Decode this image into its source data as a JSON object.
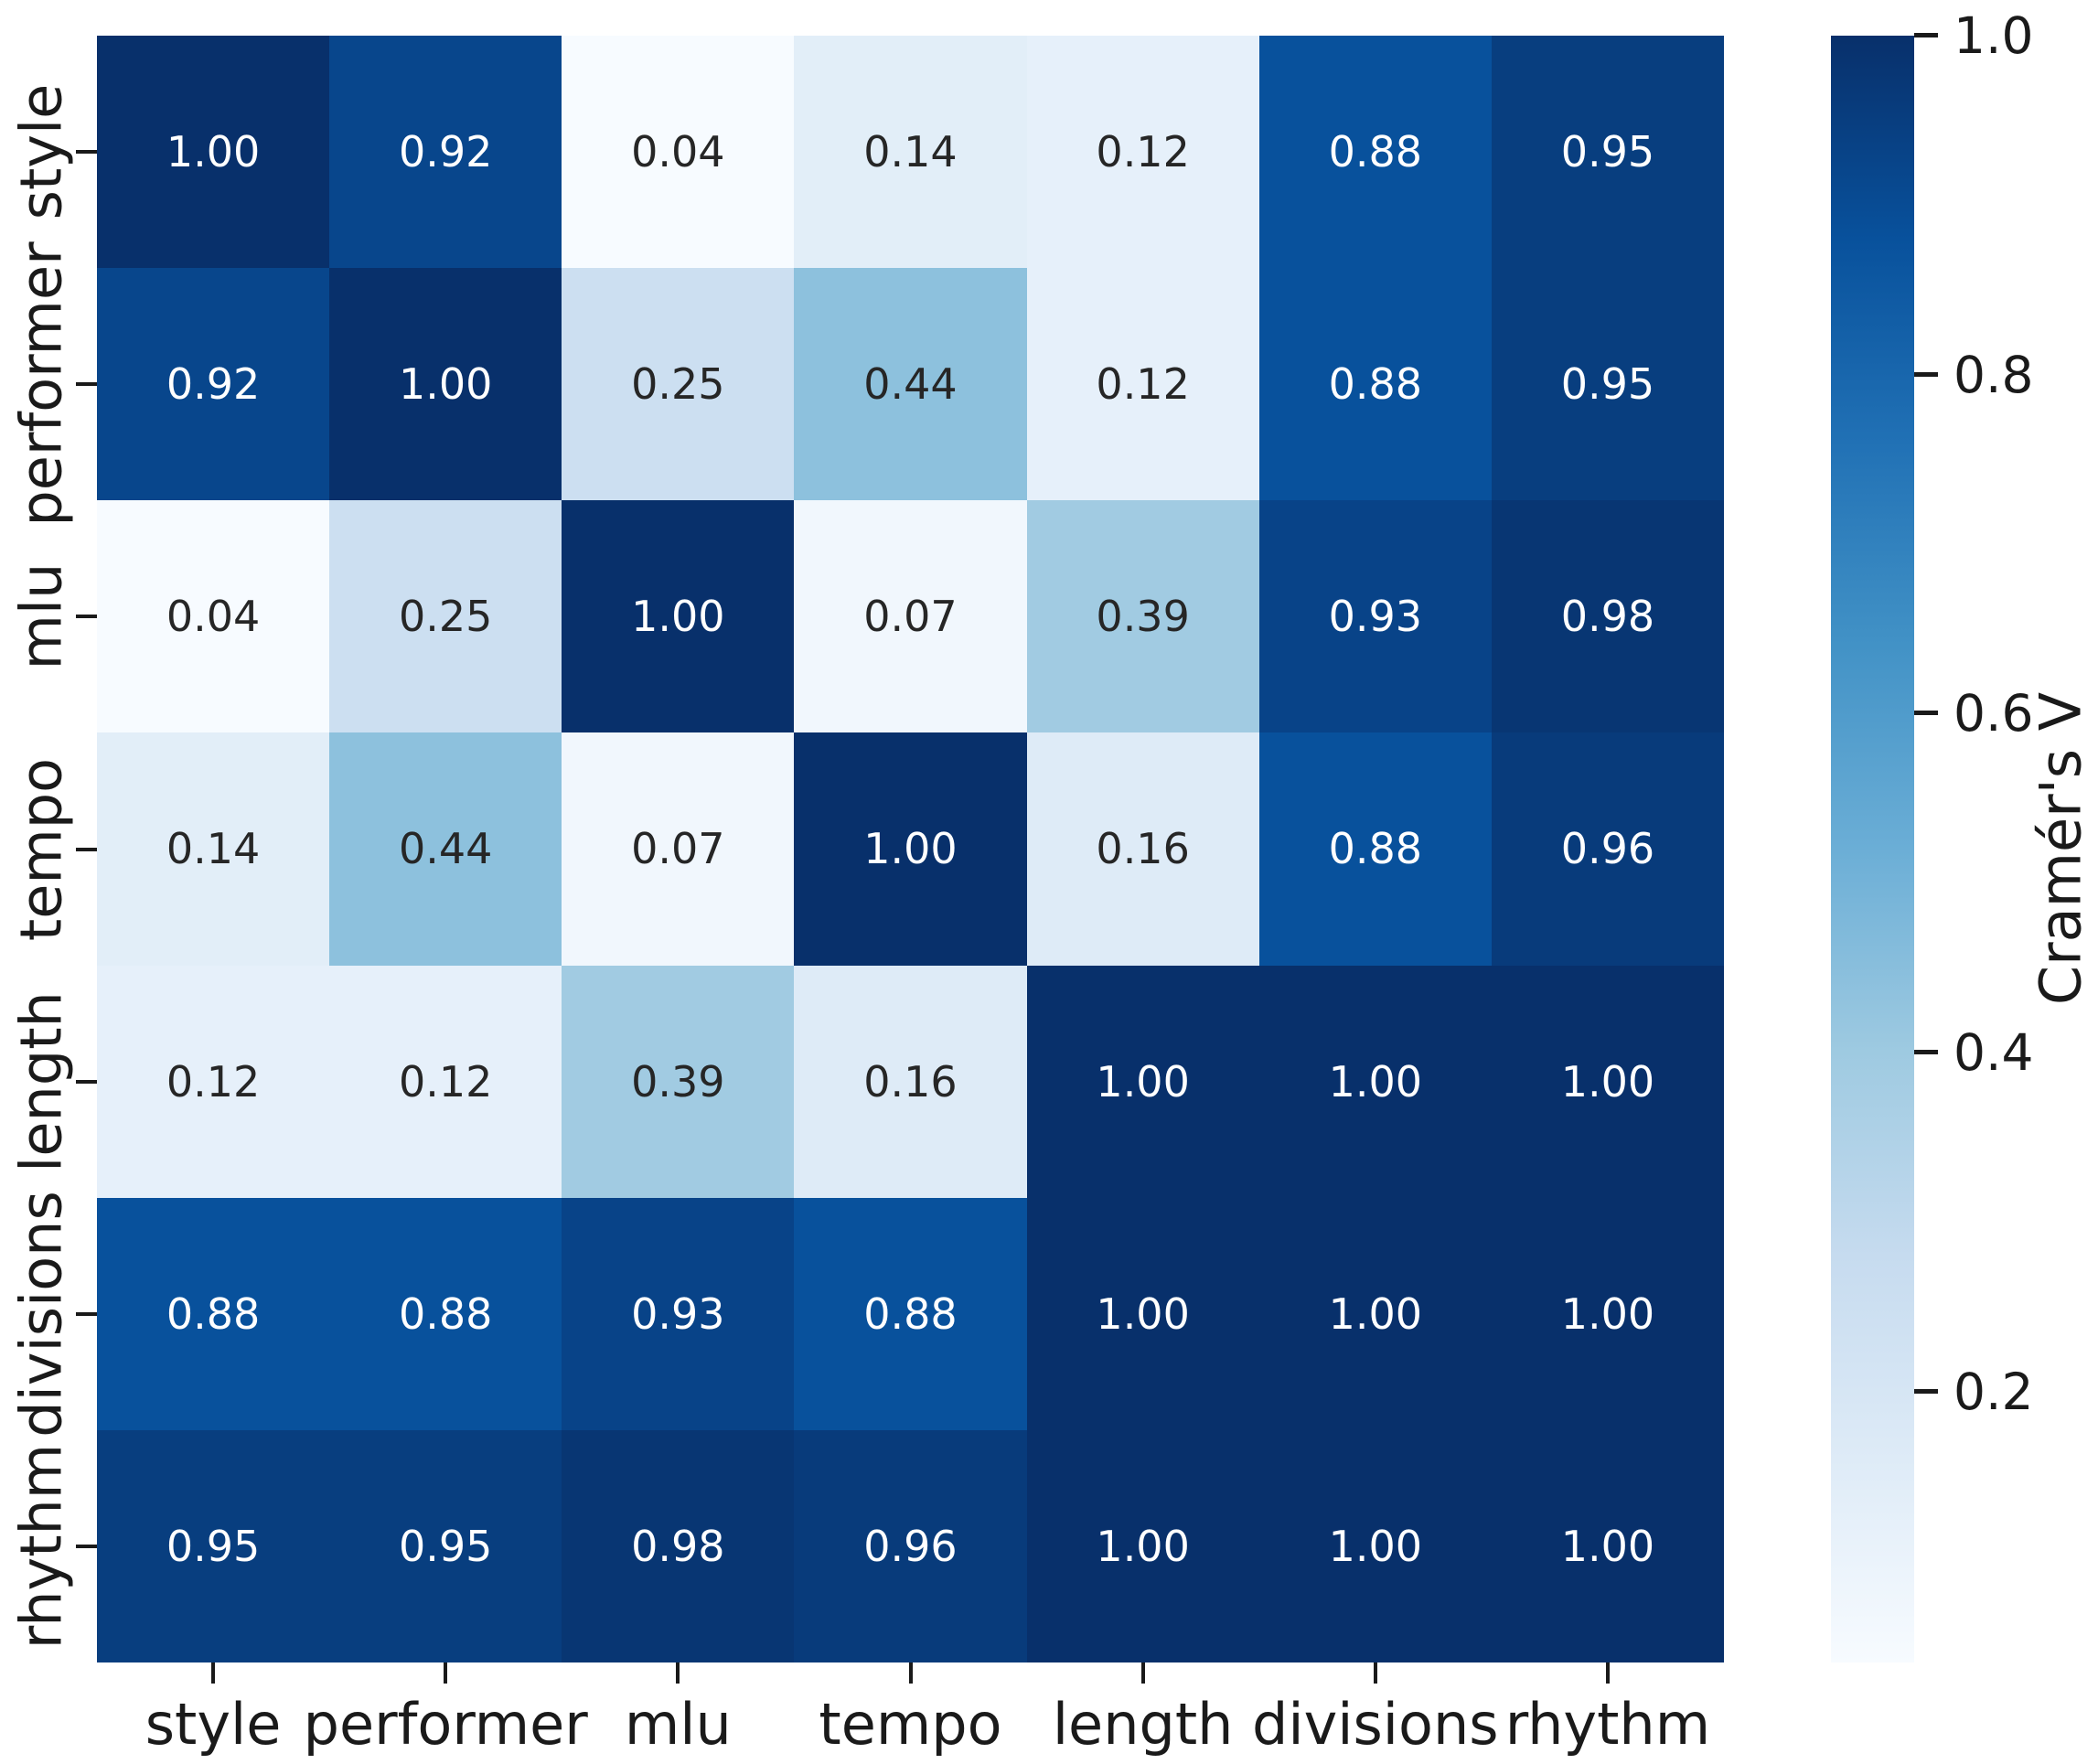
{
  "chart_data": {
    "type": "heatmap",
    "title": "",
    "categories": [
      "style",
      "performer",
      "mlu",
      "tempo",
      "length",
      "divisions",
      "rhythm"
    ],
    "matrix": [
      [
        1.0,
        0.92,
        0.04,
        0.14,
        0.12,
        0.88,
        0.95
      ],
      [
        0.92,
        1.0,
        0.25,
        0.44,
        0.12,
        0.88,
        0.95
      ],
      [
        0.04,
        0.25,
        1.0,
        0.07,
        0.39,
        0.93,
        0.98
      ],
      [
        0.14,
        0.44,
        0.07,
        1.0,
        0.16,
        0.88,
        0.96
      ],
      [
        0.12,
        0.12,
        0.39,
        0.16,
        1.0,
        1.0,
        1.0
      ],
      [
        0.88,
        0.88,
        0.93,
        0.88,
        1.0,
        1.0,
        1.0
      ],
      [
        0.95,
        0.95,
        0.98,
        0.96,
        1.0,
        1.0,
        1.0
      ]
    ],
    "value_format": ".2f",
    "grid": false,
    "colorbar": {
      "label": "Cramér's V",
      "position": "right",
      "tick_labels": [
        "1.0",
        "0.8",
        "0.6",
        "0.4",
        "0.2"
      ],
      "tick_values": [
        1.0,
        0.8,
        0.6,
        0.4,
        0.2
      ],
      "vmin": 0.04,
      "vmax": 1.0,
      "colormap": "Blues"
    },
    "colors": {
      "colormap_stops": [
        "#f7fbff",
        "#deebf7",
        "#c6dbef",
        "#9ecae1",
        "#6baed6",
        "#4292c6",
        "#2171b5",
        "#08519c",
        "#08306b"
      ],
      "annotation_on_dark": "#ffffff",
      "annotation_on_light": "#262626",
      "axis_text": "#1a1a1a"
    }
  }
}
